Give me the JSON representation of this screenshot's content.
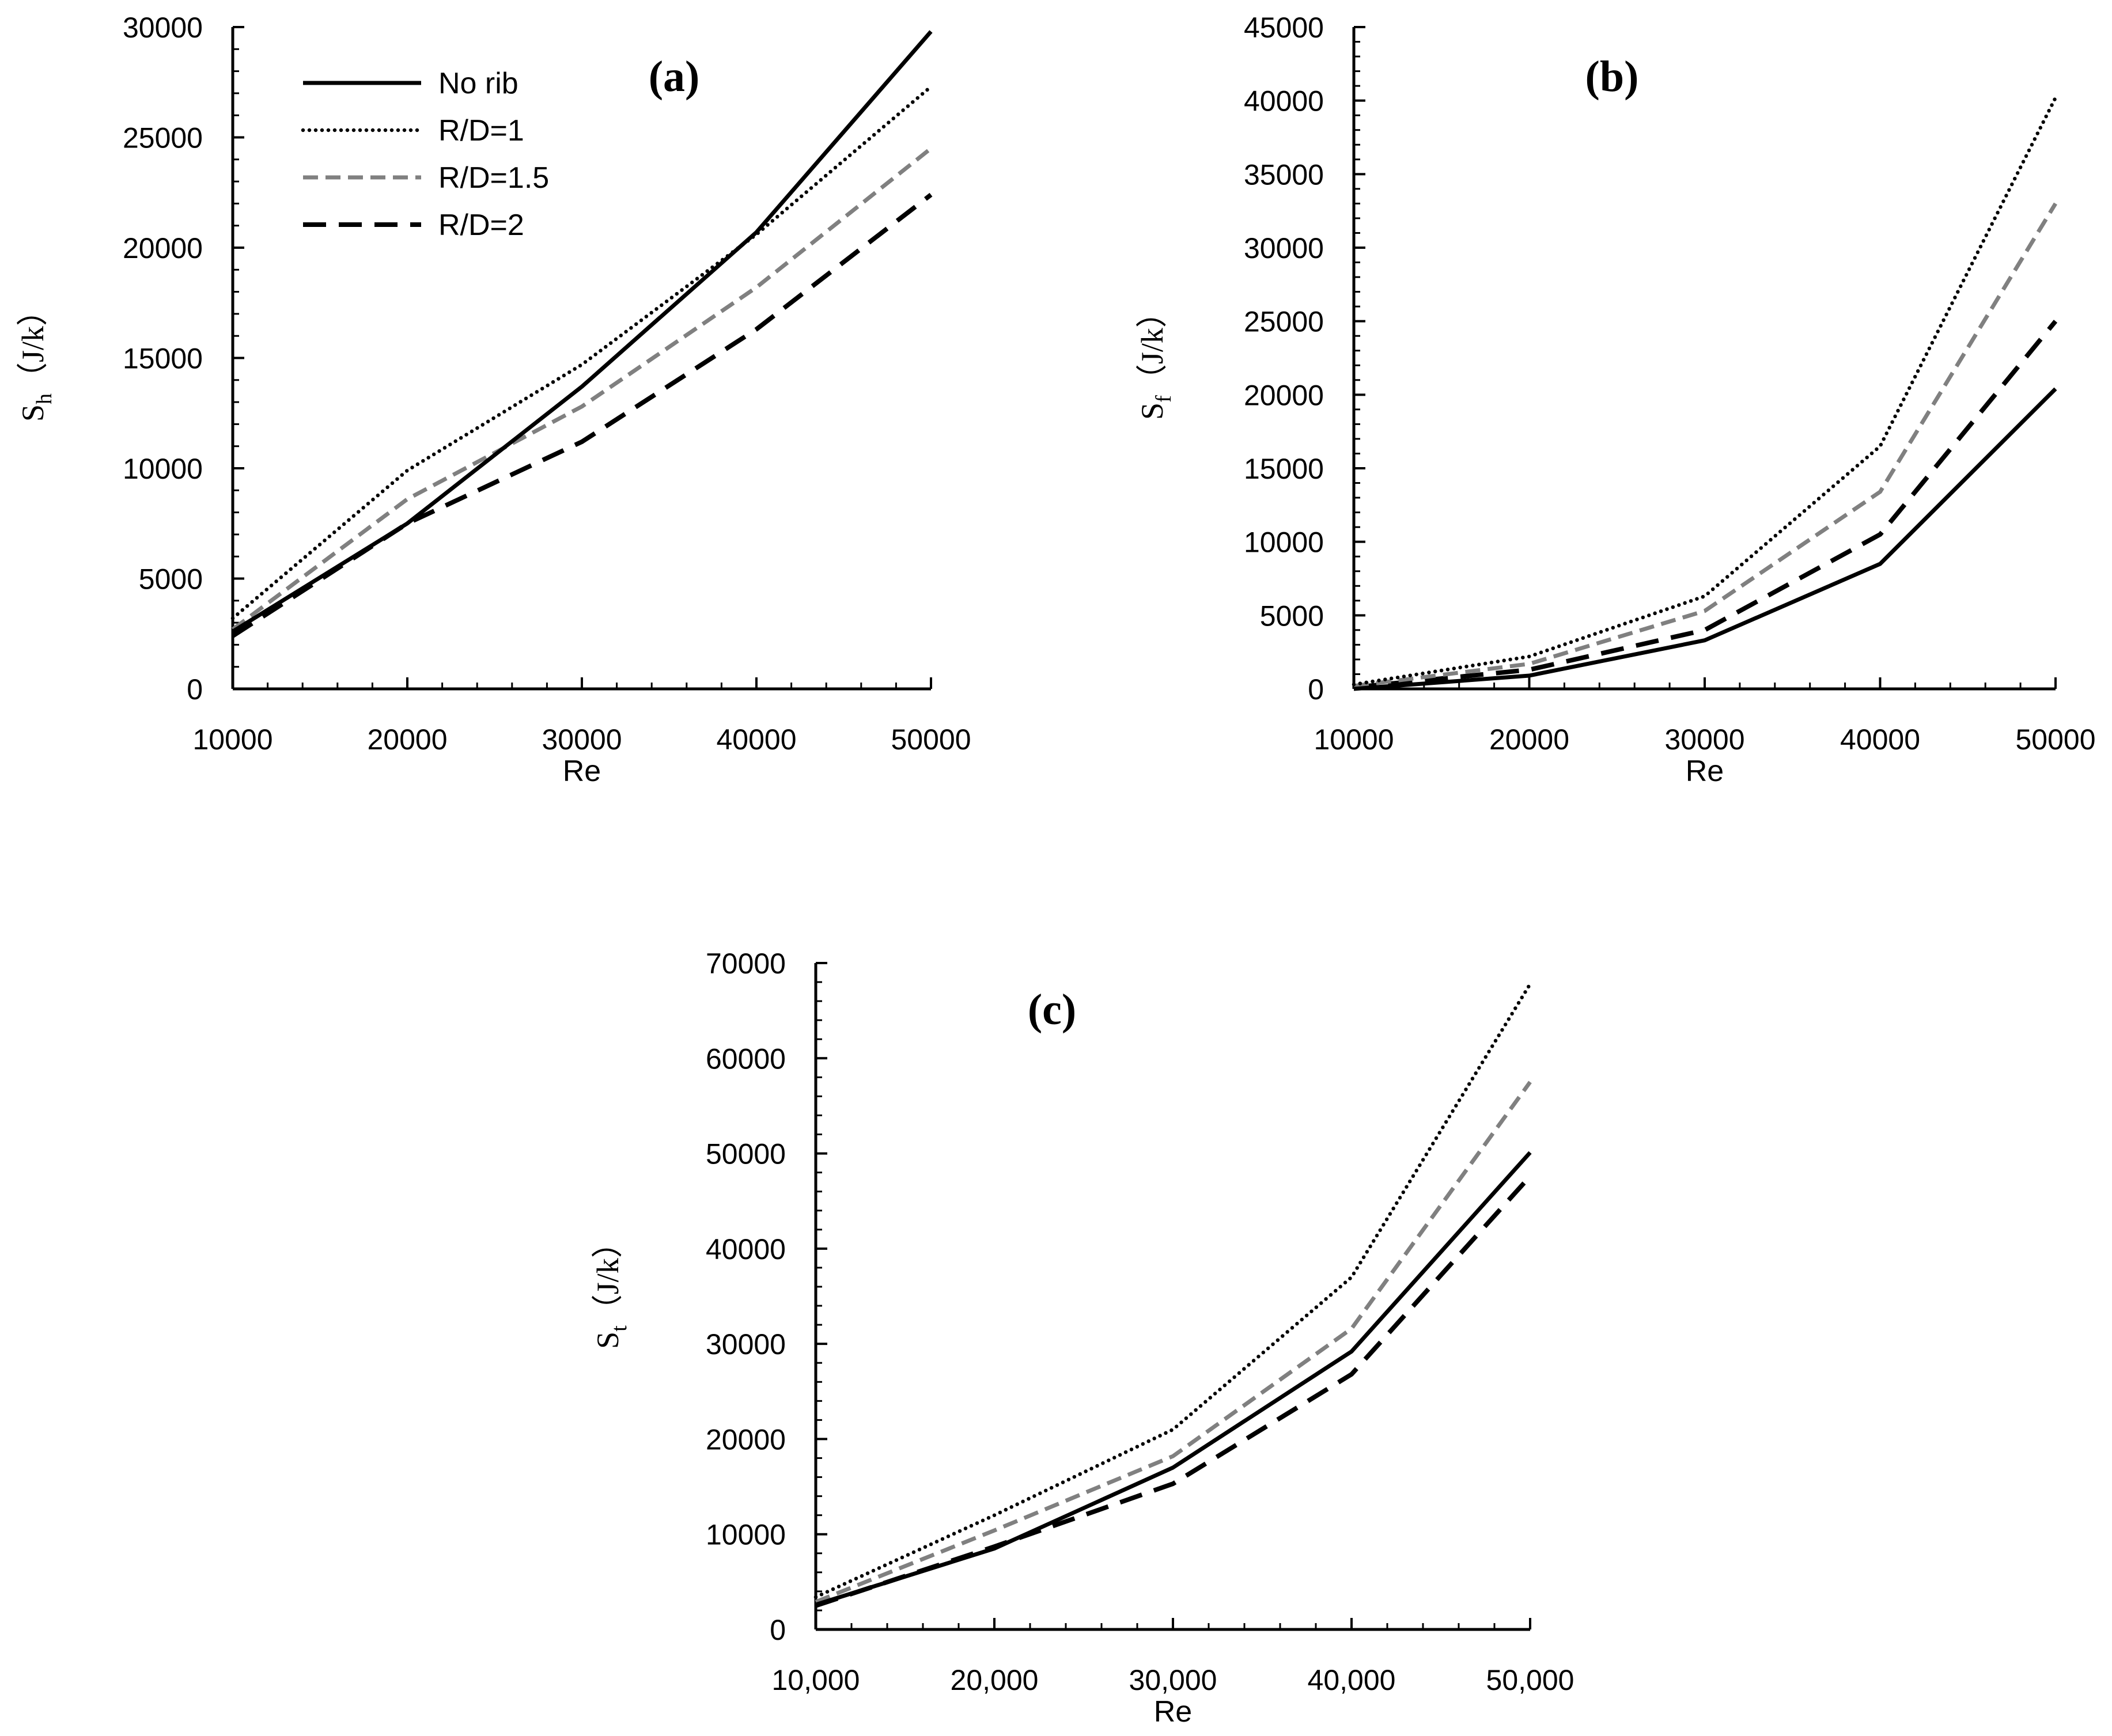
{
  "styles": {
    "No rib": {
      "color": "#000000",
      "dash": "none"
    },
    "R/D=1": {
      "color": "#000000",
      "dash": "dotted"
    },
    "R/D=1.5": {
      "color": "#808080",
      "dash": "dashed-short"
    },
    "R/D=2": {
      "color": "#000000",
      "dash": "dashed-long"
    }
  },
  "chart_data": [
    {
      "id": "a",
      "type": "line",
      "panel_label": "(a)",
      "ylabel_main": "S",
      "ylabel_sub": "h",
      "ylabel_unit": "（J/k）",
      "xlabel": "Re",
      "x": [
        10000,
        20000,
        30000,
        40000,
        50000
      ],
      "xticks": [
        "10000",
        "20000",
        "30000",
        "40000",
        "50000"
      ],
      "ylim": [
        0,
        30000
      ],
      "yticks": [
        0,
        5000,
        10000,
        15000,
        20000,
        25000,
        30000
      ],
      "ytick_labels": [
        "0",
        "5000",
        "10000",
        "15000",
        "20000",
        "25000",
        "30000"
      ],
      "legend_position": "top-left",
      "legend": [
        "No rib",
        "R/D=1",
        "R/D=1.5",
        "R/D=2"
      ],
      "series": [
        {
          "name": "No rib",
          "values": [
            2600,
            7500,
            13700,
            20700,
            29800
          ]
        },
        {
          "name": "R/D=1",
          "values": [
            3200,
            9900,
            14700,
            20600,
            27300
          ]
        },
        {
          "name": "R/D=1.5",
          "values": [
            2700,
            8600,
            12800,
            18200,
            24500
          ]
        },
        {
          "name": "R/D=2",
          "values": [
            2400,
            7500,
            11200,
            16300,
            22400
          ]
        }
      ]
    },
    {
      "id": "b",
      "type": "line",
      "panel_label": "(b)",
      "ylabel_main": "S",
      "ylabel_sub": "f",
      "ylabel_unit": "（J/k）",
      "xlabel": "Re",
      "x": [
        10000,
        20000,
        30000,
        40000,
        50000
      ],
      "xticks": [
        "10000",
        "20000",
        "30000",
        "40000",
        "50000"
      ],
      "ylim": [
        0,
        45000
      ],
      "yticks": [
        0,
        5000,
        10000,
        15000,
        20000,
        25000,
        30000,
        35000,
        40000,
        45000
      ],
      "ytick_labels": [
        "0",
        "5000",
        "10000",
        "15000",
        "20000",
        "25000",
        "30000",
        "35000",
        "40000",
        "45000"
      ],
      "series": [
        {
          "name": "No rib",
          "values": [
            0,
            900,
            3300,
            8500,
            20400
          ]
        },
        {
          "name": "R/D=1",
          "values": [
            300,
            2200,
            6300,
            16500,
            40200
          ]
        },
        {
          "name": "R/D=1.5",
          "values": [
            200,
            1700,
            5300,
            13400,
            33000
          ]
        },
        {
          "name": "R/D=2",
          "values": [
            100,
            1300,
            4000,
            10500,
            25000
          ]
        }
      ]
    },
    {
      "id": "c",
      "type": "line",
      "panel_label": "(c)",
      "ylabel_main": "S",
      "ylabel_sub": "t",
      "ylabel_unit": "（J/k）",
      "xlabel": "Re",
      "x": [
        10000,
        20000,
        30000,
        40000,
        50000
      ],
      "xticks": [
        "10,000",
        "20,000",
        "30,000",
        "40,000",
        "50,000"
      ],
      "ylim": [
        0,
        70000
      ],
      "yticks": [
        0,
        10000,
        20000,
        30000,
        40000,
        50000,
        60000,
        70000
      ],
      "ytick_labels": [
        "0",
        "10000",
        "20000",
        "30000",
        "40000",
        "50000",
        "60000",
        "70000"
      ],
      "series": [
        {
          "name": "No rib",
          "values": [
            2600,
            8500,
            17000,
            29200,
            50100
          ]
        },
        {
          "name": "R/D=1",
          "values": [
            3400,
            12000,
            21000,
            37000,
            67800
          ]
        },
        {
          "name": "R/D=1.5",
          "values": [
            2900,
            10400,
            18200,
            31600,
            57500
          ]
        },
        {
          "name": "R/D=2",
          "values": [
            2500,
            8700,
            15300,
            26800,
            47600
          ]
        }
      ]
    }
  ]
}
